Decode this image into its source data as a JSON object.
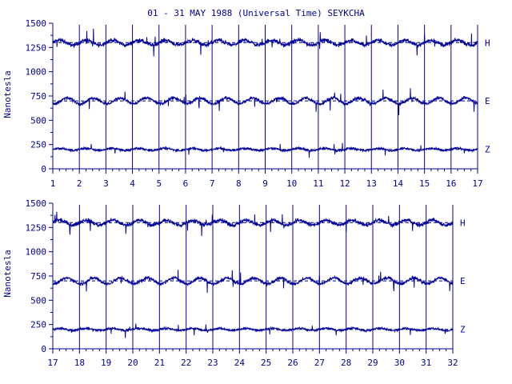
{
  "chart_data": {
    "type": "line",
    "title": "01 - 31 MAY 1988 (Universal Time) SEYKCHA",
    "ylabel": "Nanotesla",
    "color": "#000099",
    "y_ticks": [
      "0",
      "250",
      "500",
      "750",
      "1000",
      "1250",
      "1500"
    ],
    "ylim": [
      0,
      1500
    ],
    "grid": "vertical day lines",
    "panels": [
      {
        "xlim": [
          1,
          17
        ],
        "x_ticks": [
          "1",
          "2",
          "3",
          "4",
          "5",
          "6",
          "7",
          "8",
          "9",
          "10",
          "11",
          "12",
          "13",
          "14",
          "15",
          "16",
          "17"
        ],
        "series": [
          {
            "name": "H",
            "baseline": 1300
          },
          {
            "name": "E",
            "baseline": 700
          },
          {
            "name": "Z",
            "baseline": 200
          }
        ]
      },
      {
        "xlim": [
          17,
          32
        ],
        "x_ticks": [
          "17",
          "18",
          "19",
          "20",
          "21",
          "22",
          "23",
          "24",
          "25",
          "26",
          "27",
          "28",
          "29",
          "30",
          "31",
          "32"
        ],
        "series": [
          {
            "name": "H",
            "baseline": 1300
          },
          {
            "name": "E",
            "baseline": 700
          },
          {
            "name": "Z",
            "baseline": 200
          }
        ]
      }
    ]
  }
}
